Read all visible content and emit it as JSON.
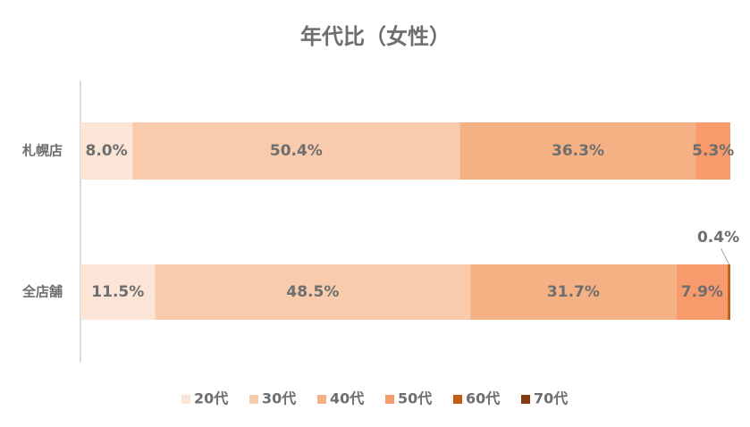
{
  "chart_data": {
    "type": "bar",
    "orientation": "horizontal",
    "stacked": true,
    "title": "年代比（女性）",
    "categories": [
      "札幌店",
      "全店舗"
    ],
    "xlim": [
      0,
      100
    ],
    "legend": "bottom",
    "series": [
      {
        "name": "20代",
        "color": "#fbe5d6",
        "values": [
          8.0,
          11.5
        ],
        "value_labels": [
          "8.0%",
          "11.5%"
        ]
      },
      {
        "name": "30代",
        "color": "#f8cbad",
        "values": [
          50.4,
          48.5
        ],
        "value_labels": [
          "50.4%",
          "48.5%"
        ]
      },
      {
        "name": "40代",
        "color": "#f4b183",
        "values": [
          36.3,
          31.7
        ],
        "value_labels": [
          "36.3%",
          "31.7%"
        ]
      },
      {
        "name": "50代",
        "color": "#f79b6d",
        "values": [
          5.3,
          7.9
        ],
        "value_labels": [
          "5.3%",
          "7.9%"
        ]
      },
      {
        "name": "60代",
        "color": "#c55a11",
        "values": [
          null,
          0.4
        ],
        "value_labels": [
          null,
          "0.4%"
        ]
      },
      {
        "name": "70代",
        "color": "#843c0c",
        "values": [
          null,
          null
        ],
        "value_labels": [
          null,
          null
        ]
      }
    ]
  }
}
